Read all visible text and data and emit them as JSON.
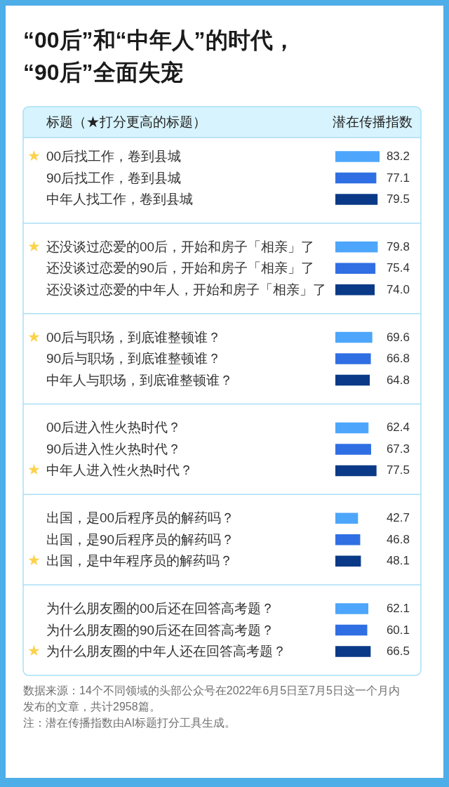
{
  "chart_data": {
    "type": "bar",
    "orientation": "horizontal",
    "title": "“00后”和“中年人”的时代，“90后”全面失宠",
    "ylabel": "标题（★打分更高的标题）",
    "xlabel": "潜在传播指数",
    "categories": [
      "00后找工作，卷到县城",
      "90后找工作，卷到县城",
      "中年人找工作，卷到县城",
      "还没谈过恋爱的00后，开始和房子「相亲」了",
      "还没谈过恋爱的90后，开始和房子「相亲」了",
      "还没谈过恋爱的中年人，开始和房子「相亲」了",
      "00后与职场，到底谁整顿谁？",
      "90后与职场，到底谁整顿谁？",
      "中年人与职场，到底谁整顿谁？",
      "00后进入性火热时代？",
      "90后进入性火热时代？",
      "中年人进入性火热时代？",
      "出国，是00后程序员的解药吗？",
      "出国，是90后程序员的解药吗？",
      "出国，是中年程序员的解药吗？",
      "为什么朋友圈的00后还在回答高考题？",
      "为什么朋友圈的90后还在回答高考题？",
      "为什么朋友圈的中年人还在回答高考题？"
    ],
    "values": [
      83.2,
      77.1,
      79.5,
      79.8,
      75.4,
      74.0,
      69.6,
      66.8,
      64.8,
      62.4,
      67.3,
      77.5,
      42.7,
      46.8,
      48.1,
      62.1,
      60.1,
      66.5
    ],
    "value_labels": [
      "83.2",
      "77.1",
      "79.5",
      "79.8",
      "75.4",
      "74.0",
      "69.6",
      "66.8",
      "64.8",
      "62.4",
      "67.3",
      "77.5",
      "42.7",
      "46.8",
      "48.1",
      "62.1",
      "60.1",
      "66.5"
    ],
    "colors": [
      "#4da6fb",
      "#2f6fe3",
      "#0a3a87",
      "#4da6fb",
      "#2f6fe3",
      "#0a3a87",
      "#4da6fb",
      "#2f6fe3",
      "#0a3a87",
      "#4da6fb",
      "#2f6fe3",
      "#0a3a87",
      "#4da6fb",
      "#2f6fe3",
      "#0a3a87",
      "#4da6fb",
      "#2f6fe3",
      "#0a3a87"
    ],
    "tick_labels": "y",
    "annotations": [
      "★",
      "★",
      "★",
      "★",
      "★",
      "★",
      "数据来源：14个不同领域的头部公众号在2022年6月5日至7月5日这一个月内发布的文章，共计2958篇。",
      "注：潜在传播指数由AI标题打分工具生成。"
    ]
  }
}
